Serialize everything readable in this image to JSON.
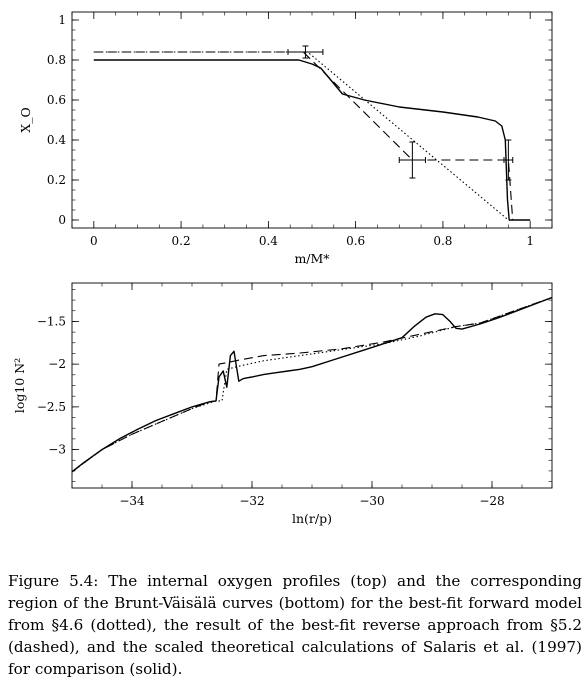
{
  "caption": {
    "label": "Figure 5.4:",
    "text": "The internal oxygen profiles (top) and the corresponding region of the Brunt-Väisälä curves (bottom) for the best-fit forward model from §4.6 (dotted), the result of the best-fit reverse approach from §5.2 (dashed), and the scaled theoretical calculations of Salaris et al. (1997) for comparison (solid)."
  },
  "chart_data": [
    {
      "type": "line",
      "title": "",
      "xlabel": "m/M*",
      "ylabel": "X_O",
      "xlim": [
        -0.05,
        1.05
      ],
      "ylim": [
        -0.04,
        1.04
      ],
      "xticks": [
        0,
        0.2,
        0.4,
        0.6,
        0.8,
        1
      ],
      "xtick_labels": [
        "0",
        "0.2",
        "0.4",
        "0.6",
        "0.8",
        "1"
      ],
      "yticks": [
        0,
        0.2,
        0.4,
        0.6,
        0.8,
        1
      ],
      "ytick_labels": [
        "0",
        "0.2",
        "0.4",
        "0.6",
        "0.8",
        "1"
      ],
      "grid": false,
      "series": [
        {
          "style": "solid",
          "x": [
            0,
            0.47,
            0.5,
            0.52,
            0.57,
            0.62,
            0.7,
            0.8,
            0.88,
            0.92,
            0.935,
            0.943,
            0.948,
            0.952,
            1.0
          ],
          "y": [
            0.8,
            0.8,
            0.78,
            0.76,
            0.63,
            0.6,
            0.565,
            0.54,
            0.515,
            0.495,
            0.47,
            0.4,
            0.1,
            0.0,
            0.0
          ]
        },
        {
          "style": "dashed",
          "x": [
            0,
            0.48,
            0.73,
            0.95,
            0.96
          ],
          "y": [
            0.84,
            0.84,
            0.3,
            0.3,
            0.0
          ]
        },
        {
          "style": "dotted",
          "x": [
            0,
            0.49,
            0.95
          ],
          "y": [
            0.84,
            0.84,
            0.0
          ]
        }
      ],
      "error_bars": [
        {
          "x": 0.485,
          "y": 0.84,
          "xerr": 0.04,
          "yerr": 0.03
        },
        {
          "x": 0.73,
          "y": 0.3,
          "xerr": 0.03,
          "yerr": 0.09
        },
        {
          "x": 0.95,
          "y": 0.3,
          "xerr": 0.01,
          "yerr": 0.1
        }
      ]
    },
    {
      "type": "line",
      "title": "",
      "xlabel": "ln(r/p)",
      "ylabel": "log10 N²",
      "xlim": [
        -35,
        -27
      ],
      "ylim": [
        -3.45,
        -1.05
      ],
      "xticks": [
        -34,
        -32,
        -30,
        -28
      ],
      "xtick_labels": [
        "−34",
        "−32",
        "−30",
        "−28"
      ],
      "yticks": [
        -3,
        -2.5,
        -2,
        -1.5
      ],
      "ytick_labels": [
        "−3",
        "−2.5",
        "−2",
        "−1.5"
      ],
      "grid": false,
      "series": [
        {
          "style": "solid",
          "x": [
            -35,
            -34.8,
            -34.5,
            -34.2,
            -33.9,
            -33.6,
            -33.3,
            -33.0,
            -32.7,
            -32.6,
            -32.55,
            -32.48,
            -32.42,
            -32.36,
            -32.3,
            -32.22,
            -32.15,
            -32.08,
            -32.0,
            -31.8,
            -31.6,
            -31.4,
            -31.2,
            -31.0,
            -30.6,
            -30.2,
            -29.8,
            -29.5,
            -29.3,
            -29.1,
            -28.95,
            -28.82,
            -28.7,
            -28.6,
            -28.5,
            -28.2,
            -27.9,
            -27.6,
            -27.3,
            -27.0
          ],
          "y": [
            -3.26,
            -3.15,
            -3.0,
            -2.87,
            -2.76,
            -2.66,
            -2.58,
            -2.5,
            -2.44,
            -2.43,
            -2.15,
            -2.08,
            -2.27,
            -1.9,
            -1.85,
            -2.2,
            -2.17,
            -2.16,
            -2.15,
            -2.12,
            -2.1,
            -2.08,
            -2.06,
            -2.03,
            -1.94,
            -1.85,
            -1.76,
            -1.69,
            -1.56,
            -1.45,
            -1.41,
            -1.42,
            -1.5,
            -1.58,
            -1.59,
            -1.53,
            -1.46,
            -1.38,
            -1.3,
            -1.22
          ]
        },
        {
          "style": "dashed",
          "x": [
            -35,
            -34.5,
            -34.0,
            -33.5,
            -33.0,
            -32.7,
            -32.6,
            -32.55,
            -32.4,
            -32.2,
            -31.8,
            -31.2,
            -30.5,
            -29.8,
            -29.0,
            -28.6,
            -28.2,
            -27.6,
            -27.0
          ],
          "y": [
            -3.26,
            -3.0,
            -2.82,
            -2.67,
            -2.52,
            -2.44,
            -2.43,
            -2.0,
            -1.98,
            -1.95,
            -1.9,
            -1.87,
            -1.82,
            -1.74,
            -1.62,
            -1.56,
            -1.52,
            -1.37,
            -1.22
          ]
        },
        {
          "style": "dotted",
          "x": [
            -35,
            -34.5,
            -34.0,
            -33.5,
            -33.0,
            -32.6,
            -32.5,
            -32.42,
            -32.2,
            -31.8,
            -31.2,
            -30.5,
            -29.8,
            -29.2,
            -28.6,
            -28.2,
            -27.6,
            -27.0
          ],
          "y": [
            -3.26,
            -3.0,
            -2.82,
            -2.67,
            -2.52,
            -2.43,
            -2.43,
            -2.06,
            -2.02,
            -1.96,
            -1.9,
            -1.83,
            -1.76,
            -1.67,
            -1.56,
            -1.52,
            -1.37,
            -1.22
          ]
        }
      ]
    }
  ]
}
